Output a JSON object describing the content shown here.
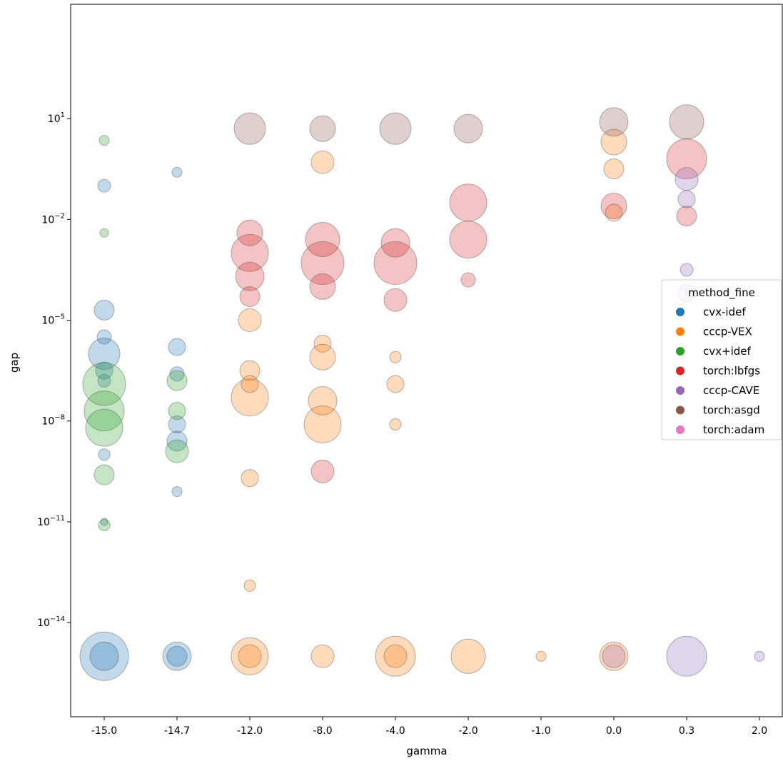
{
  "chart_data": {
    "type": "scatter",
    "title": "",
    "xlabel": "gamma",
    "ylabel": "gap",
    "yscale": "log",
    "ylim_log10": [
      -16.8,
      4.4
    ],
    "grid": false,
    "categories": [
      "-15.0",
      "-14.7",
      "-12.0",
      "-8.0",
      "-4.0",
      "-2.0",
      "-1.0",
      "0.0",
      "0.3",
      "2.0"
    ],
    "yticks": [
      {
        "exp": 1,
        "label": "10",
        "sup": "1"
      },
      {
        "exp": -2,
        "label": "10",
        "sup": "−2"
      },
      {
        "exp": -5,
        "label": "10",
        "sup": "−5"
      },
      {
        "exp": -8,
        "label": "10",
        "sup": "−8"
      },
      {
        "exp": -11,
        "label": "10",
        "sup": "−11"
      },
      {
        "exp": -14,
        "label": "10",
        "sup": "−14"
      }
    ],
    "legend": {
      "title": "method_fine",
      "position": "center-right",
      "entries": [
        {
          "name": "cvx-idef",
          "color": "#1f77b4"
        },
        {
          "name": "cccp-VEX",
          "color": "#ff7f0e"
        },
        {
          "name": "cvx+idef",
          "color": "#2ca02c"
        },
        {
          "name": "torch:lbfgs",
          "color": "#d62728"
        },
        {
          "name": "cccp-CAVE",
          "color": "#9467bd"
        },
        {
          "name": "torch:asgd",
          "color": "#8c564b"
        },
        {
          "name": "torch:adam",
          "color": "#e377c2"
        }
      ]
    },
    "series": [
      {
        "name": "cvx-idef",
        "color": "#1f77b4",
        "points": [
          {
            "x": "-15.0",
            "gap_log10": -4.7,
            "size": 14
          },
          {
            "x": "-15.0",
            "gap_log10": -5.5,
            "size": 10
          },
          {
            "x": "-15.0",
            "gap_log10": -6.0,
            "size": 22
          },
          {
            "x": "-15.0",
            "gap_log10": -6.5,
            "size": 12
          },
          {
            "x": "-15.0",
            "gap_log10": -6.8,
            "size": 9
          },
          {
            "x": "-15.0",
            "gap_log10": -1.0,
            "size": 9
          },
          {
            "x": "-15.0",
            "gap_log10": -9.0,
            "size": 8
          },
          {
            "x": "-15.0",
            "gap_log10": -11.0,
            "size": 5
          },
          {
            "x": "-15.0",
            "gap_log10": -15.0,
            "size": 34
          },
          {
            "x": "-15.0",
            "gap_log10": -15.0,
            "size": 20
          },
          {
            "x": "-14.7",
            "gap_log10": -5.8,
            "size": 12
          },
          {
            "x": "-14.7",
            "gap_log10": -6.6,
            "size": 10
          },
          {
            "x": "-14.7",
            "gap_log10": -8.1,
            "size": 12
          },
          {
            "x": "-14.7",
            "gap_log10": -8.6,
            "size": 14
          },
          {
            "x": "-14.7",
            "gap_log10": -10.1,
            "size": 7
          },
          {
            "x": "-14.7",
            "gap_log10": -0.6,
            "size": 7
          },
          {
            "x": "-14.7",
            "gap_log10": -15.0,
            "size": 20
          },
          {
            "x": "-14.7",
            "gap_log10": -15.0,
            "size": 14
          }
        ]
      },
      {
        "name": "cccp-VEX",
        "color": "#ff7f0e",
        "points": [
          {
            "x": "-12.0",
            "gap_log10": -6.5,
            "size": 14
          },
          {
            "x": "-12.0",
            "gap_log10": -7.3,
            "size": 26
          },
          {
            "x": "-12.0",
            "gap_log10": -6.9,
            "size": 12
          },
          {
            "x": "-12.0",
            "gap_log10": -5.0,
            "size": 16
          },
          {
            "x": "-12.0",
            "gap_log10": -9.7,
            "size": 12
          },
          {
            "x": "-12.0",
            "gap_log10": -12.9,
            "size": 8
          },
          {
            "x": "-12.0",
            "gap_log10": -15.0,
            "size": 26
          },
          {
            "x": "-12.0",
            "gap_log10": -15.0,
            "size": 16
          },
          {
            "x": "-8.0",
            "gap_log10": -5.7,
            "size": 12
          },
          {
            "x": "-8.0",
            "gap_log10": -6.1,
            "size": 18
          },
          {
            "x": "-8.0",
            "gap_log10": -7.4,
            "size": 20
          },
          {
            "x": "-8.0",
            "gap_log10": -8.1,
            "size": 26
          },
          {
            "x": "-8.0",
            "gap_log10": -0.3,
            "size": 16
          },
          {
            "x": "-8.0",
            "gap_log10": -15.0,
            "size": 16
          },
          {
            "x": "-4.0",
            "gap_log10": -6.1,
            "size": 8
          },
          {
            "x": "-4.0",
            "gap_log10": -6.9,
            "size": 12
          },
          {
            "x": "-4.0",
            "gap_log10": -8.1,
            "size": 8
          },
          {
            "x": "-4.0",
            "gap_log10": -15.0,
            "size": 28
          },
          {
            "x": "-4.0",
            "gap_log10": -15.0,
            "size": 16
          },
          {
            "x": "-2.0",
            "gap_log10": -15.0,
            "size": 24
          },
          {
            "x": "-1.0",
            "gap_log10": -15.0,
            "size": 7
          },
          {
            "x": "0.0",
            "gap_log10": 0.3,
            "size": 18
          },
          {
            "x": "0.0",
            "gap_log10": -0.5,
            "size": 14
          },
          {
            "x": "0.0",
            "gap_log10": -1.8,
            "size": 12
          },
          {
            "x": "0.0",
            "gap_log10": -15.0,
            "size": 20
          }
        ]
      },
      {
        "name": "cvx+idef",
        "color": "#2ca02c",
        "points": [
          {
            "x": "-15.0",
            "gap_log10": -6.9,
            "size": 30
          },
          {
            "x": "-15.0",
            "gap_log10": -7.7,
            "size": 28
          },
          {
            "x": "-15.0",
            "gap_log10": -8.2,
            "size": 26
          },
          {
            "x": "-15.0",
            "gap_log10": -9.6,
            "size": 14
          },
          {
            "x": "-15.0",
            "gap_log10": -11.1,
            "size": 8
          },
          {
            "x": "-15.0",
            "gap_log10": 0.35,
            "size": 7
          },
          {
            "x": "-15.0",
            "gap_log10": -2.4,
            "size": 6
          },
          {
            "x": "-14.7",
            "gap_log10": -6.8,
            "size": 14
          },
          {
            "x": "-14.7",
            "gap_log10": -7.7,
            "size": 12
          },
          {
            "x": "-14.7",
            "gap_log10": -8.9,
            "size": 16
          }
        ]
      },
      {
        "name": "torch:lbfgs",
        "color": "#d62728",
        "points": [
          {
            "x": "-12.0",
            "gap_log10": -3.0,
            "size": 26
          },
          {
            "x": "-12.0",
            "gap_log10": -2.4,
            "size": 18
          },
          {
            "x": "-12.0",
            "gap_log10": -3.7,
            "size": 20
          },
          {
            "x": "-12.0",
            "gap_log10": -4.3,
            "size": 14
          },
          {
            "x": "-8.0",
            "gap_log10": -2.6,
            "size": 24
          },
          {
            "x": "-8.0",
            "gap_log10": -3.3,
            "size": 30
          },
          {
            "x": "-8.0",
            "gap_log10": -4.0,
            "size": 18
          },
          {
            "x": "-8.0",
            "gap_log10": -9.5,
            "size": 16
          },
          {
            "x": "-4.0",
            "gap_log10": -2.7,
            "size": 20
          },
          {
            "x": "-4.0",
            "gap_log10": -3.3,
            "size": 30
          },
          {
            "x": "-4.0",
            "gap_log10": -4.4,
            "size": 16
          },
          {
            "x": "-2.0",
            "gap_log10": -1.5,
            "size": 26
          },
          {
            "x": "-2.0",
            "gap_log10": -2.6,
            "size": 26
          },
          {
            "x": "-2.0",
            "gap_log10": -3.8,
            "size": 10
          },
          {
            "x": "0.0",
            "gap_log10": -1.6,
            "size": 18
          },
          {
            "x": "0.3",
            "gap_log10": -0.2,
            "size": 28
          },
          {
            "x": "0.3",
            "gap_log10": -1.9,
            "size": 14
          }
        ]
      },
      {
        "name": "cccp-CAVE",
        "color": "#9467bd",
        "points": [
          {
            "x": "0.3",
            "gap_log10": -0.8,
            "size": 16
          },
          {
            "x": "0.3",
            "gap_log10": -1.4,
            "size": 12
          },
          {
            "x": "0.3",
            "gap_log10": -4.2,
            "size": 12
          },
          {
            "x": "0.3",
            "gap_log10": -3.5,
            "size": 9
          },
          {
            "x": "0.0",
            "gap_log10": -15.0,
            "size": 16
          },
          {
            "x": "0.3",
            "gap_log10": -15.0,
            "size": 28
          },
          {
            "x": "2.0",
            "gap_log10": -15.0,
            "size": 7
          }
        ]
      },
      {
        "name": "torch:asgd",
        "color": "#8c564b",
        "points": [
          {
            "x": "-12.0",
            "gap_log10": 0.7,
            "size": 22
          },
          {
            "x": "-8.0",
            "gap_log10": 0.7,
            "size": 18
          },
          {
            "x": "-4.0",
            "gap_log10": 0.7,
            "size": 22
          },
          {
            "x": "-2.0",
            "gap_log10": 0.7,
            "size": 20
          },
          {
            "x": "0.0",
            "gap_log10": 0.9,
            "size": 20
          },
          {
            "x": "0.3",
            "gap_log10": 0.9,
            "size": 24
          }
        ]
      },
      {
        "name": "torch:adam",
        "color": "#e377c2",
        "points": []
      }
    ]
  }
}
